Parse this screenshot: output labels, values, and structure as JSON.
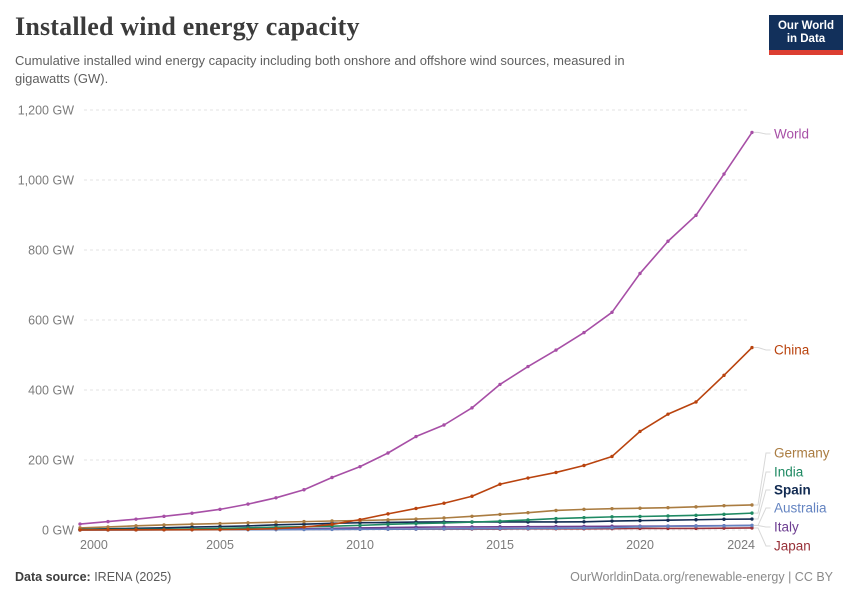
{
  "header": {
    "title": "Installed wind energy capacity",
    "subtitle_lines": [
      "Cumulative installed wind energy capacity including both onshore and offshore wind sources, measured in",
      "gigawatts (GW)."
    ],
    "logo": {
      "line1": "Our World",
      "line2": "in Data",
      "bg_color": "#12305b",
      "stripe_color": "#dc3e31"
    }
  },
  "footer": {
    "source_label": "Data source:",
    "source_value": " IRENA (2025)",
    "credit": "OurWorldinData.org/renewable-energy | CC BY"
  },
  "chart_data": {
    "type": "line",
    "title": "Installed wind energy capacity",
    "ylabel": "GW",
    "ylim": [
      0,
      1200
    ],
    "grid": "horizontal-dashed",
    "legend_position": "right-end-labels",
    "x": [
      2000,
      2001,
      2002,
      2003,
      2004,
      2005,
      2006,
      2007,
      2008,
      2009,
      2010,
      2011,
      2012,
      2013,
      2014,
      2015,
      2016,
      2017,
      2018,
      2019,
      2020,
      2021,
      2022,
      2023,
      2024
    ],
    "x_ticks": [
      2000,
      2005,
      2010,
      2015,
      2020,
      2024
    ],
    "y_ticks": [
      0,
      200,
      400,
      600,
      800,
      1000,
      1200
    ],
    "y_tick_labels": [
      "0 GW",
      "200 GW",
      "400 GW",
      "600 GW",
      "800 GW",
      "1,000 GW",
      "1,200 GW"
    ],
    "colors": {
      "grid": "#e3e3e3",
      "axis_text": "#7c7c7c",
      "connector": "#d8d8d8"
    },
    "series": [
      {
        "name": "World",
        "color": "#A74FA6",
        "bold": false,
        "label_y": 134,
        "values": [
          17,
          24,
          31,
          39,
          48,
          59,
          74,
          92,
          115,
          150,
          181,
          220,
          267,
          300,
          349,
          416,
          467,
          514,
          564,
          622,
          733,
          825,
          899,
          1017,
          1136
        ]
      },
      {
        "name": "China",
        "color": "#B9430E",
        "bold": false,
        "label_y": 350,
        "values": [
          0.3,
          0.4,
          0.5,
          0.6,
          0.8,
          1.1,
          2.0,
          4.1,
          8.4,
          16.0,
          29.6,
          46.1,
          61.6,
          76.5,
          96.4,
          130.8,
          148.5,
          164.4,
          184.3,
          210.1,
          281.7,
          331.0,
          365.8,
          441.9,
          521.3
        ]
      },
      {
        "name": "Germany",
        "color": "#AA7C41",
        "bold": false,
        "label_y": 453,
        "values": [
          6.1,
          8.8,
          12.0,
          14.6,
          16.6,
          18.4,
          20.6,
          22.2,
          23.9,
          25.7,
          26.9,
          29.0,
          31.3,
          34.3,
          39.2,
          44.6,
          49.6,
          55.8,
          58.9,
          60.9,
          62.2,
          63.8,
          66.2,
          69.5,
          71.5
        ]
      },
      {
        "name": "India",
        "color": "#1F8A63",
        "bold": false,
        "label_y": 472,
        "values": [
          1.2,
          1.5,
          1.7,
          2.1,
          3.0,
          4.4,
          6.3,
          7.9,
          9.6,
          10.9,
          13.2,
          16.2,
          18.4,
          20.2,
          22.5,
          25.1,
          28.7,
          32.8,
          35.3,
          37.5,
          38.6,
          40.1,
          41.9,
          44.7,
          48.2
        ]
      },
      {
        "name": "Spain",
        "color": "#122B52",
        "bold": true,
        "label_y": 490,
        "values": [
          2.2,
          3.5,
          5.0,
          6.2,
          8.3,
          10.0,
          11.7,
          14.8,
          16.5,
          19.1,
          20.7,
          21.5,
          22.8,
          22.9,
          22.9,
          22.9,
          23.0,
          23.1,
          23.5,
          25.6,
          26.8,
          27.9,
          29.3,
          30.7,
          31.3
        ]
      },
      {
        "name": "Australia",
        "color": "#6484C1",
        "bold": false,
        "label_y": 508,
        "values": [
          0.1,
          0.1,
          0.2,
          0.4,
          0.6,
          0.7,
          0.8,
          0.9,
          1.3,
          1.7,
          2.0,
          2.2,
          2.6,
          3.2,
          3.8,
          4.2,
          4.3,
          4.8,
          5.4,
          6.5,
          9.5,
          10.7,
          11.2,
          12.1,
          13.1
        ]
      },
      {
        "name": "Italy",
        "color": "#6D3E91",
        "bold": false,
        "label_y": 527,
        "values": [
          0.4,
          0.7,
          0.8,
          0.9,
          1.1,
          1.6,
          2.0,
          2.7,
          3.5,
          4.9,
          5.8,
          6.9,
          8.1,
          8.6,
          8.7,
          9.1,
          9.4,
          9.8,
          10.3,
          10.7,
          10.9,
          11.3,
          11.9,
          12.4,
          12.9
        ]
      },
      {
        "name": "Japan",
        "color": "#983139",
        "bold": false,
        "label_y": 546,
        "values": [
          0.1,
          0.3,
          0.4,
          0.7,
          0.9,
          1.0,
          1.3,
          1.5,
          1.9,
          2.1,
          2.3,
          2.4,
          2.6,
          2.7,
          2.8,
          2.8,
          3.2,
          3.5,
          3.5,
          3.8,
          4.4,
          4.5,
          4.6,
          5.2,
          5.8
        ]
      }
    ]
  }
}
